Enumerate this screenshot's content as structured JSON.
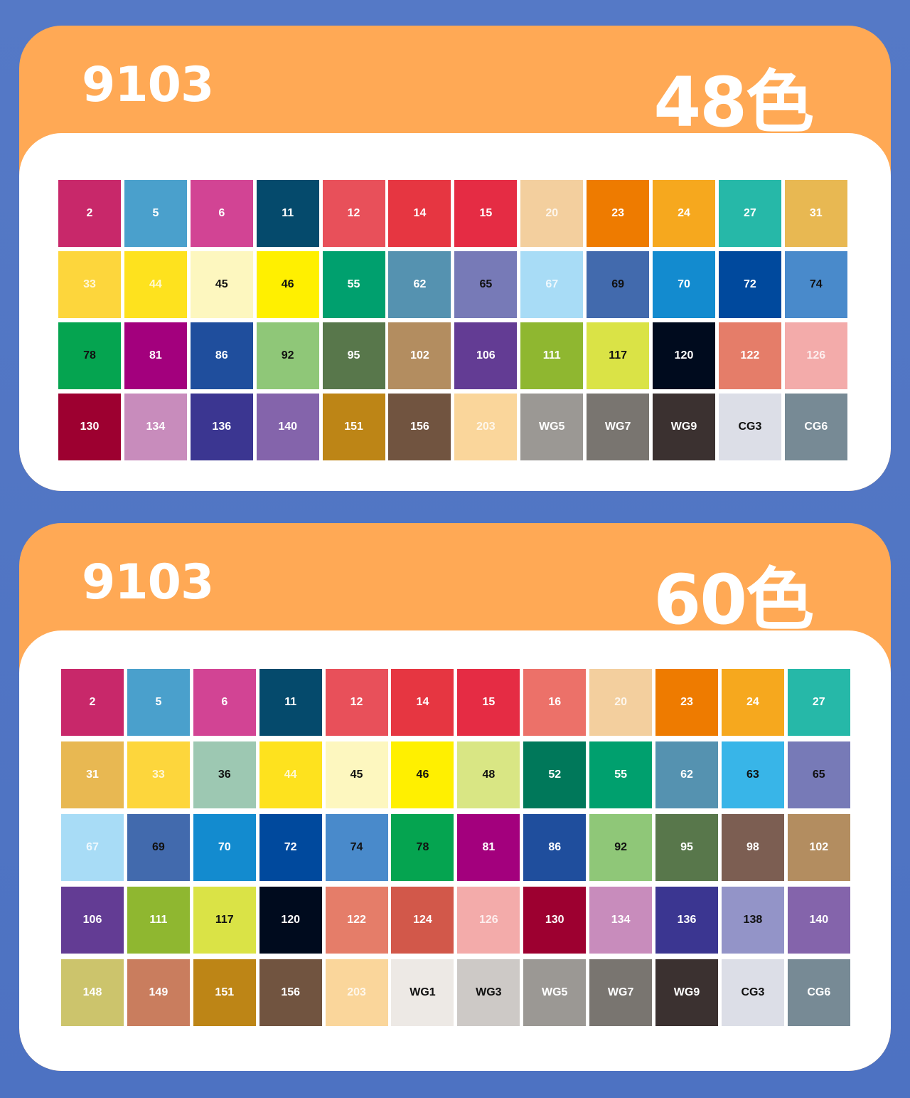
{
  "colors_accent": "#ffa955",
  "colors_background": "#5579c6",
  "sets": [
    {
      "model": "9103",
      "count_label": "48色",
      "swatches": [
        {
          "code": "2",
          "color": "#c8286a",
          "text": "light"
        },
        {
          "code": "5",
          "color": "#4aa0cc",
          "text": "light"
        },
        {
          "code": "6",
          "color": "#d24494",
          "text": "light"
        },
        {
          "code": "11",
          "color": "#054a6c",
          "text": "light"
        },
        {
          "code": "12",
          "color": "#e8505a",
          "text": "light"
        },
        {
          "code": "14",
          "color": "#e63641",
          "text": "light"
        },
        {
          "code": "15",
          "color": "#e52c44",
          "text": "light"
        },
        {
          "code": "20",
          "color": "#f3cf9e",
          "text": "faint"
        },
        {
          "code": "23",
          "color": "#ee7b00",
          "text": "light"
        },
        {
          "code": "24",
          "color": "#f6a81e",
          "text": "light"
        },
        {
          "code": "27",
          "color": "#26b8a8",
          "text": "light"
        },
        {
          "code": "31",
          "color": "#e8b852",
          "text": "light"
        },
        {
          "code": "33",
          "color": "#fdd63c",
          "text": "faint"
        },
        {
          "code": "44",
          "color": "#fee21e",
          "text": "faint"
        },
        {
          "code": "45",
          "color": "#fdf7bf",
          "text": "dark"
        },
        {
          "code": "46",
          "color": "#fff000",
          "text": "dark"
        },
        {
          "code": "55",
          "color": "#00a06e",
          "text": "light"
        },
        {
          "code": "62",
          "color": "#5592b0",
          "text": "light"
        },
        {
          "code": "65",
          "color": "#777ab7",
          "text": "dark"
        },
        {
          "code": "67",
          "color": "#a8dcf6",
          "text": "faint"
        },
        {
          "code": "69",
          "color": "#426aad",
          "text": "dark"
        },
        {
          "code": "70",
          "color": "#138bcf",
          "text": "light"
        },
        {
          "code": "72",
          "color": "#00499d",
          "text": "light"
        },
        {
          "code": "74",
          "color": "#498acb",
          "text": "dark"
        },
        {
          "code": "78",
          "color": "#05a450",
          "text": "dark"
        },
        {
          "code": "81",
          "color": "#a3007d",
          "text": "light"
        },
        {
          "code": "86",
          "color": "#1f4e9d",
          "text": "light"
        },
        {
          "code": "92",
          "color": "#8fc778",
          "text": "dark"
        },
        {
          "code": "95",
          "color": "#58774b",
          "text": "light"
        },
        {
          "code": "102",
          "color": "#b38d60",
          "text": "light"
        },
        {
          "code": "106",
          "color": "#633c94",
          "text": "light"
        },
        {
          "code": "111",
          "color": "#8fb730",
          "text": "light"
        },
        {
          "code": "117",
          "color": "#dae346",
          "text": "dark"
        },
        {
          "code": "120",
          "color": "#000b1e",
          "text": "light"
        },
        {
          "code": "122",
          "color": "#e57d69",
          "text": "light"
        },
        {
          "code": "126",
          "color": "#f3abaa",
          "text": "faint"
        },
        {
          "code": "130",
          "color": "#9d0030",
          "text": "light"
        },
        {
          "code": "134",
          "color": "#c88cbc",
          "text": "light"
        },
        {
          "code": "136",
          "color": "#3b3691",
          "text": "light"
        },
        {
          "code": "140",
          "color": "#8464ab",
          "text": "light"
        },
        {
          "code": "151",
          "color": "#bd8516",
          "text": "light"
        },
        {
          "code": "156",
          "color": "#715440",
          "text": "light"
        },
        {
          "code": "203",
          "color": "#fad69b",
          "text": "faint"
        },
        {
          "code": "WG5",
          "color": "#9b9894",
          "text": "light"
        },
        {
          "code": "WG7",
          "color": "#797570",
          "text": "light"
        },
        {
          "code": "WG9",
          "color": "#3b3130",
          "text": "light"
        },
        {
          "code": "CG3",
          "color": "#dcdee7",
          "text": "dark"
        },
        {
          "code": "CG6",
          "color": "#778a95",
          "text": "light"
        }
      ]
    },
    {
      "model": "9103",
      "count_label": "60色",
      "swatches": [
        {
          "code": "2",
          "color": "#c8286a",
          "text": "light"
        },
        {
          "code": "5",
          "color": "#4aa0cc",
          "text": "light"
        },
        {
          "code": "6",
          "color": "#d24494",
          "text": "light"
        },
        {
          "code": "11",
          "color": "#054a6c",
          "text": "light"
        },
        {
          "code": "12",
          "color": "#e8505a",
          "text": "light"
        },
        {
          "code": "14",
          "color": "#e63641",
          "text": "light"
        },
        {
          "code": "15",
          "color": "#e52c44",
          "text": "light"
        },
        {
          "code": "16",
          "color": "#ec7169",
          "text": "light"
        },
        {
          "code": "20",
          "color": "#f3cf9e",
          "text": "faint"
        },
        {
          "code": "23",
          "color": "#ee7b00",
          "text": "light"
        },
        {
          "code": "24",
          "color": "#f6a81e",
          "text": "light"
        },
        {
          "code": "27",
          "color": "#26b8a8",
          "text": "light"
        },
        {
          "code": "31",
          "color": "#e8b852",
          "text": "light"
        },
        {
          "code": "33",
          "color": "#fdd63c",
          "text": "faint"
        },
        {
          "code": "36",
          "color": "#9dc8b2",
          "text": "dark"
        },
        {
          "code": "44",
          "color": "#fee21e",
          "text": "faint"
        },
        {
          "code": "45",
          "color": "#fdf7bf",
          "text": "dark"
        },
        {
          "code": "46",
          "color": "#fff000",
          "text": "dark"
        },
        {
          "code": "48",
          "color": "#d9e684",
          "text": "dark"
        },
        {
          "code": "52",
          "color": "#00785a",
          "text": "light"
        },
        {
          "code": "55",
          "color": "#00a06e",
          "text": "light"
        },
        {
          "code": "62",
          "color": "#5592b0",
          "text": "light"
        },
        {
          "code": "63",
          "color": "#38b5e8",
          "text": "dark"
        },
        {
          "code": "65",
          "color": "#777ab7",
          "text": "dark"
        },
        {
          "code": "67",
          "color": "#a8dcf6",
          "text": "faint"
        },
        {
          "code": "69",
          "color": "#426aad",
          "text": "dark"
        },
        {
          "code": "70",
          "color": "#138bcf",
          "text": "light"
        },
        {
          "code": "72",
          "color": "#00499d",
          "text": "light"
        },
        {
          "code": "74",
          "color": "#498acb",
          "text": "dark"
        },
        {
          "code": "78",
          "color": "#05a450",
          "text": "dark"
        },
        {
          "code": "81",
          "color": "#a3007d",
          "text": "light"
        },
        {
          "code": "86",
          "color": "#1f4e9d",
          "text": "light"
        },
        {
          "code": "92",
          "color": "#8fc778",
          "text": "dark"
        },
        {
          "code": "95",
          "color": "#58774b",
          "text": "light"
        },
        {
          "code": "98",
          "color": "#7c5e52",
          "text": "light"
        },
        {
          "code": "102",
          "color": "#b38d60",
          "text": "light"
        },
        {
          "code": "106",
          "color": "#633c94",
          "text": "light"
        },
        {
          "code": "111",
          "color": "#8fb730",
          "text": "light"
        },
        {
          "code": "117",
          "color": "#dae346",
          "text": "dark"
        },
        {
          "code": "120",
          "color": "#000b1e",
          "text": "light"
        },
        {
          "code": "122",
          "color": "#e57d69",
          "text": "light"
        },
        {
          "code": "124",
          "color": "#d2584a",
          "text": "light"
        },
        {
          "code": "126",
          "color": "#f3abaa",
          "text": "faint"
        },
        {
          "code": "130",
          "color": "#9d0030",
          "text": "light"
        },
        {
          "code": "134",
          "color": "#c88cbc",
          "text": "light"
        },
        {
          "code": "136",
          "color": "#3b3691",
          "text": "light"
        },
        {
          "code": "138",
          "color": "#9394c8",
          "text": "dark"
        },
        {
          "code": "140",
          "color": "#8464ab",
          "text": "light"
        },
        {
          "code": "148",
          "color": "#ccc46c",
          "text": "light"
        },
        {
          "code": "149",
          "color": "#c97d5e",
          "text": "light"
        },
        {
          "code": "151",
          "color": "#bd8516",
          "text": "light"
        },
        {
          "code": "156",
          "color": "#715440",
          "text": "light"
        },
        {
          "code": "203",
          "color": "#fad69b",
          "text": "faint"
        },
        {
          "code": "WG1",
          "color": "#ede9e5",
          "text": "dark"
        },
        {
          "code": "WG3",
          "color": "#cdc9c6",
          "text": "dark"
        },
        {
          "code": "WG5",
          "color": "#9b9894",
          "text": "light"
        },
        {
          "code": "WG7",
          "color": "#797570",
          "text": "light"
        },
        {
          "code": "WG9",
          "color": "#3b3130",
          "text": "light"
        },
        {
          "code": "CG3",
          "color": "#dcdee7",
          "text": "dark"
        },
        {
          "code": "CG6",
          "color": "#778a95",
          "text": "light"
        }
      ]
    }
  ]
}
